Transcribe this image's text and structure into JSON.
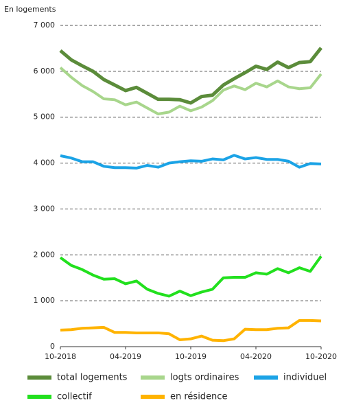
{
  "chart_data": {
    "type": "line",
    "y_label": "En logements",
    "categories": [
      "10-2018",
      null,
      null,
      null,
      null,
      null,
      "04-2019",
      null,
      null,
      null,
      null,
      null,
      "10-2019",
      null,
      null,
      null,
      null,
      null,
      "04-2020",
      null,
      null,
      null,
      null,
      null,
      "10-2020"
    ],
    "series": [
      {
        "name": "total logements",
        "color": "#5b8c3a",
        "values": [
          6450,
          6250,
          6120,
          6000,
          5820,
          5700,
          5580,
          5650,
          5520,
          5390,
          5390,
          5380,
          5310,
          5450,
          5480,
          5700,
          5840,
          5970,
          6110,
          6040,
          6200,
          6080,
          6190,
          6210,
          6510
        ]
      },
      {
        "name": "logts ordinaires",
        "color": "#a8d68c",
        "values": [
          6080,
          5870,
          5690,
          5560,
          5400,
          5380,
          5270,
          5330,
          5200,
          5070,
          5110,
          5240,
          5140,
          5220,
          5360,
          5590,
          5680,
          5600,
          5740,
          5660,
          5790,
          5660,
          5620,
          5640,
          5940
        ]
      },
      {
        "name": "individuel",
        "color": "#1ba3e6",
        "values": [
          4160,
          4110,
          4030,
          4030,
          3930,
          3900,
          3900,
          3890,
          3950,
          3910,
          4000,
          4030,
          4050,
          4040,
          4090,
          4070,
          4170,
          4090,
          4120,
          4080,
          4080,
          4040,
          3910,
          3990,
          3980
        ]
      },
      {
        "name": "collectif",
        "color": "#22e01e",
        "values": [
          1940,
          1770,
          1680,
          1560,
          1470,
          1480,
          1370,
          1430,
          1250,
          1160,
          1100,
          1210,
          1110,
          1190,
          1250,
          1500,
          1510,
          1510,
          1610,
          1580,
          1700,
          1610,
          1720,
          1640,
          1970
        ]
      },
      {
        "name": "en résidence",
        "color": "#ffb300",
        "values": [
          360,
          370,
          400,
          410,
          420,
          310,
          310,
          300,
          300,
          300,
          280,
          150,
          170,
          230,
          140,
          130,
          170,
          380,
          370,
          370,
          400,
          410,
          570,
          570,
          560
        ]
      }
    ],
    "ylim": [
      0,
      7000
    ],
    "yticks": [
      0,
      {
        "value": 1000,
        "label": "1 000"
      },
      {
        "value": 2000,
        "label": "2 000"
      },
      {
        "value": 3000,
        "label": "3 000"
      },
      {
        "value": 4000,
        "label": "4 000"
      },
      {
        "value": 5000,
        "label": "5 000"
      },
      {
        "value": 6000,
        "label": "6 000"
      },
      {
        "value": 7000,
        "label": "7 000"
      }
    ],
    "grid": true
  }
}
